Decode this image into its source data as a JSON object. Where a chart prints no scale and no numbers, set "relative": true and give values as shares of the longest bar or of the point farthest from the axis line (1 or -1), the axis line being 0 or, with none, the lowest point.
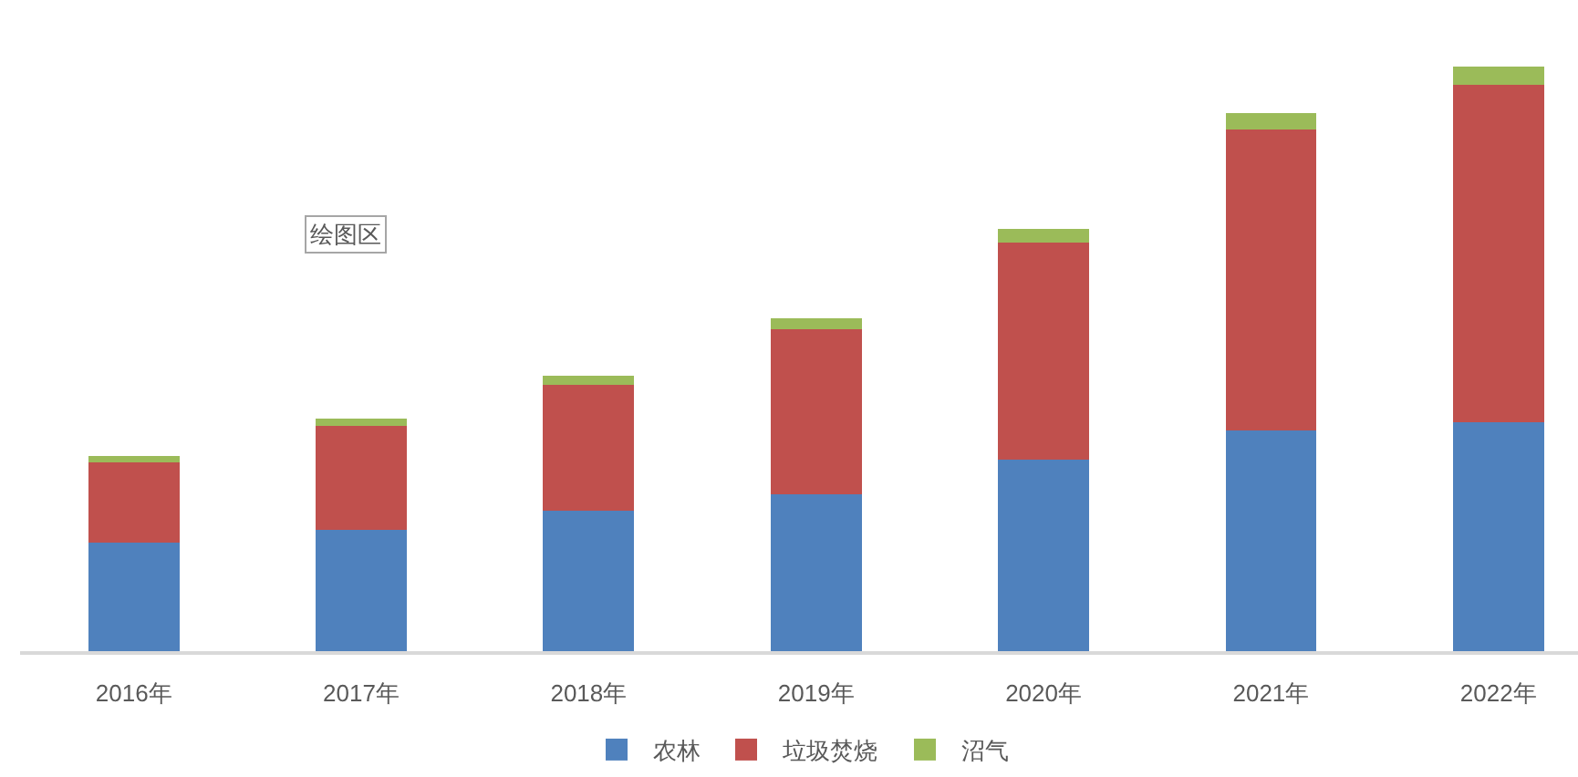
{
  "chart_data": {
    "type": "bar",
    "categories": [
      "2016年",
      "2017年",
      "2018年",
      "2019年",
      "2020年",
      "2021年",
      "2022年"
    ],
    "series": [
      {
        "name": "农林",
        "color": "#4f81bd",
        "values": [
          0.186,
          0.208,
          0.24,
          0.269,
          0.328,
          0.377,
          0.392
        ]
      },
      {
        "name": "垃圾焚烧",
        "color": "#c0504d",
        "values": [
          0.137,
          0.177,
          0.215,
          0.282,
          0.371,
          0.515,
          0.577
        ]
      },
      {
        "name": "沼气",
        "color": "#9bbb59",
        "values": [
          0.01,
          0.012,
          0.016,
          0.018,
          0.023,
          0.028,
          0.031
        ]
      }
    ],
    "stacked": true,
    "relative": true,
    "legend": "bottom",
    "annotations": [
      "绘图区"
    ]
  }
}
